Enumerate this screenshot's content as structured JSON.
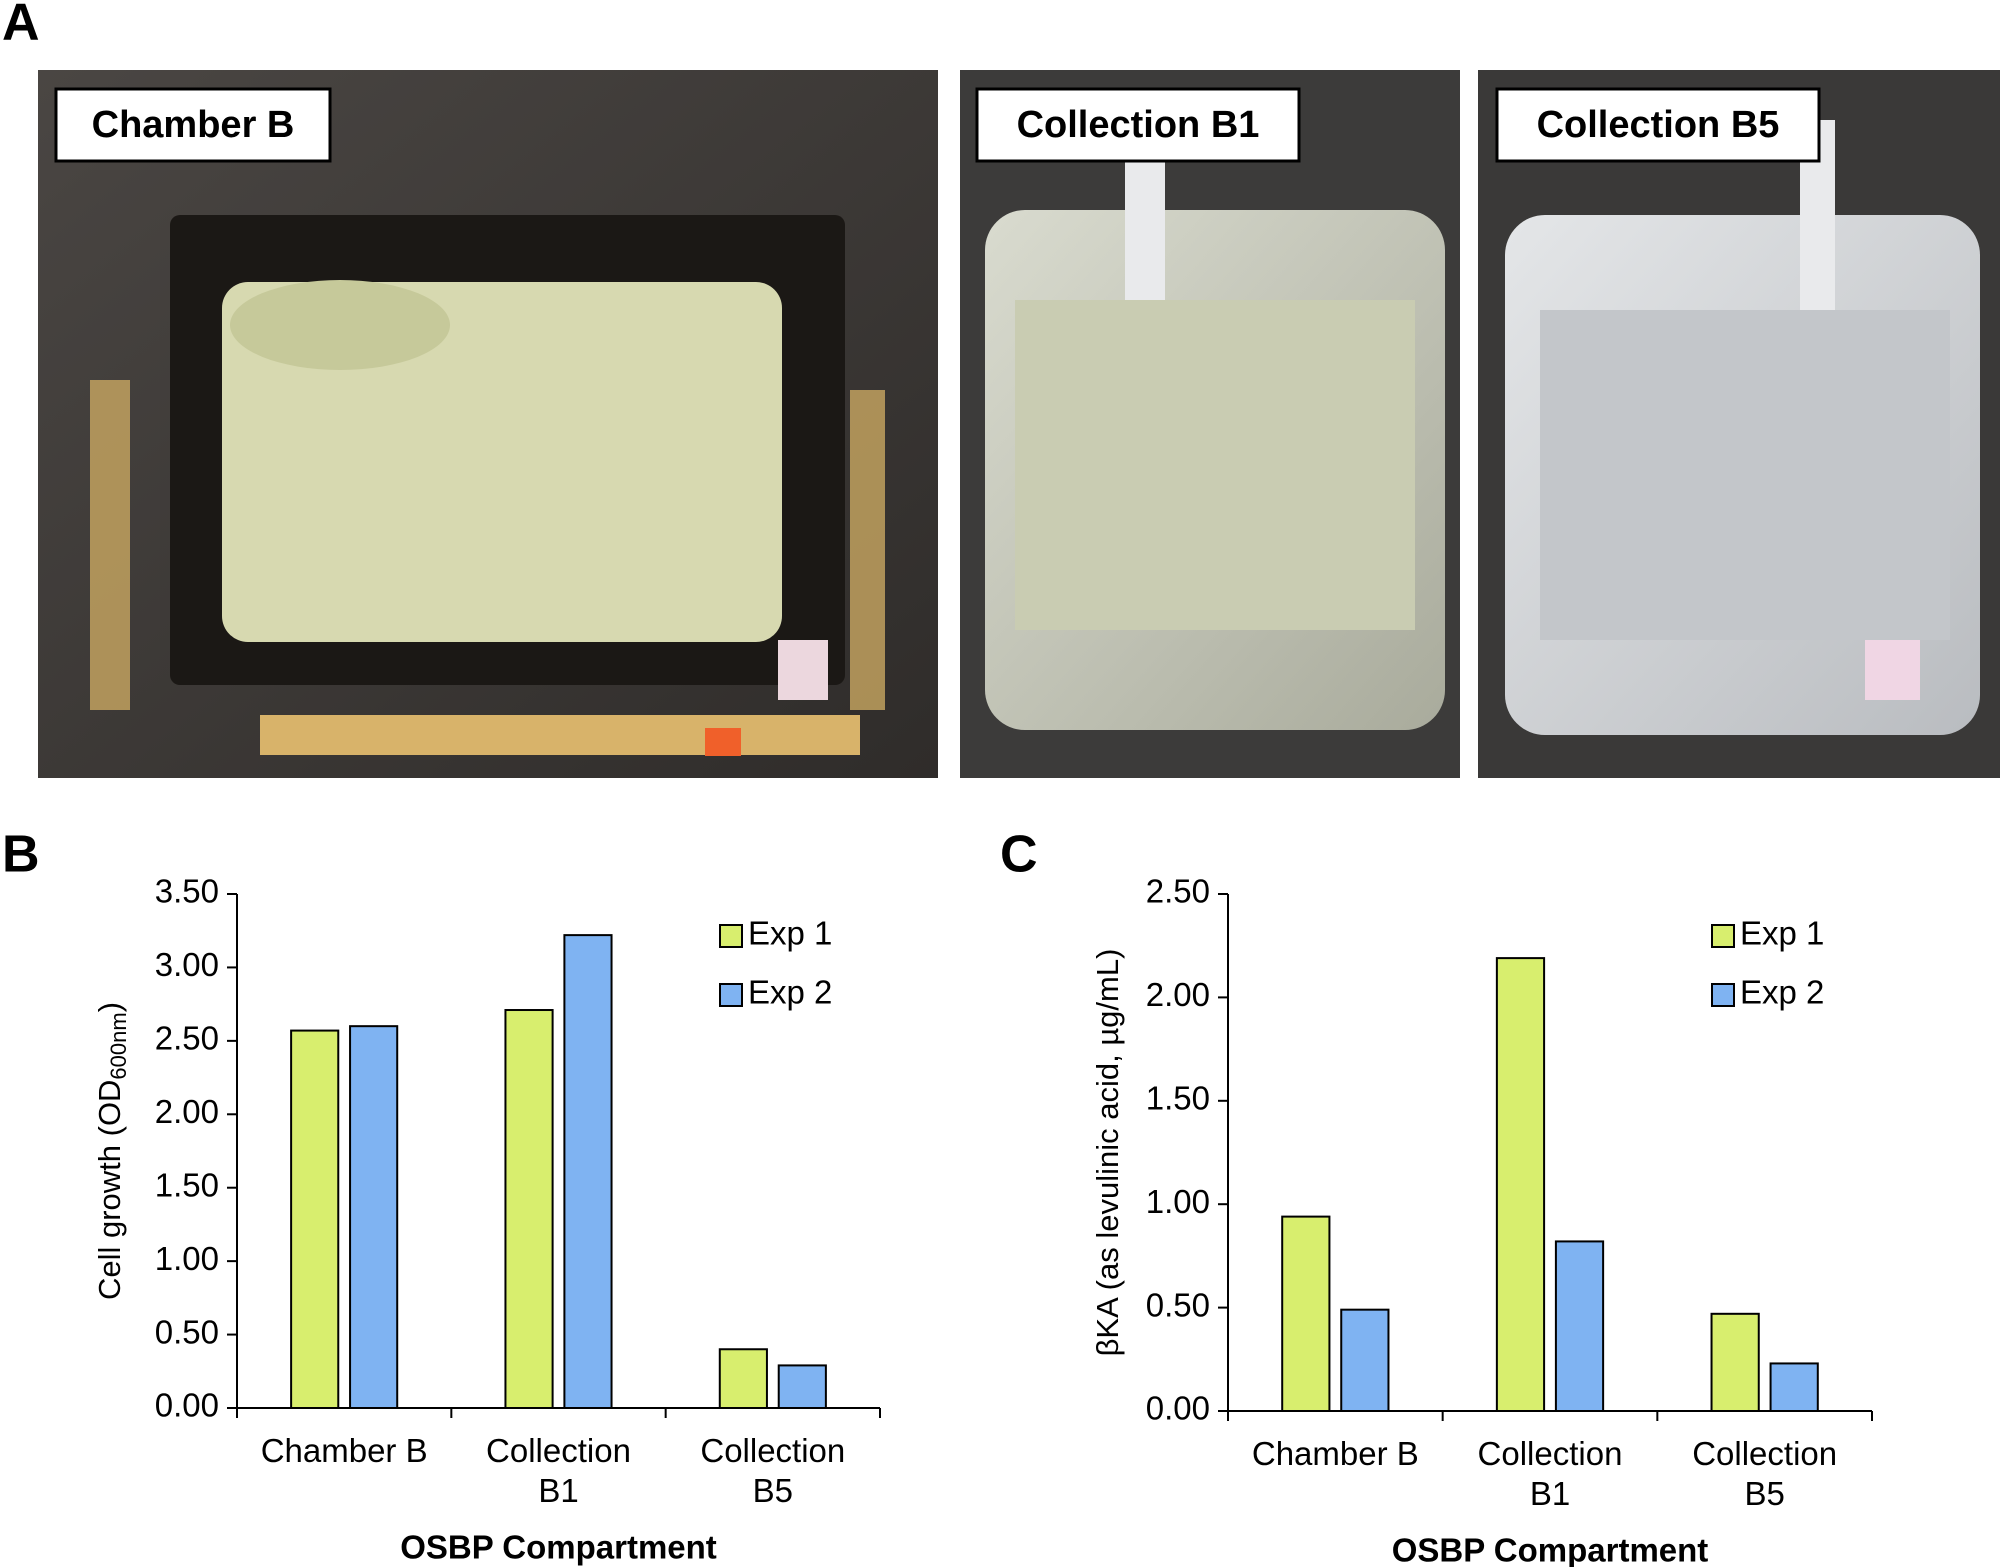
{
  "panel_labels": [
    "A",
    "B",
    "C"
  ],
  "photos": [
    {
      "label": "Chamber B"
    },
    {
      "label": "Collection B1"
    },
    {
      "label": "Collection B5"
    }
  ],
  "chart_data": [
    {
      "type": "bar",
      "x_label": "OSBP Compartment",
      "y_label": [
        "Cell growth (OD",
        "600nm",
        ")"
      ],
      "categories": [
        "Chamber B",
        "Collection\nB1",
        "Collection\nB5"
      ],
      "series": [
        {
          "name": "Exp 1",
          "color": "#d8ee6e",
          "values": [
            2.57,
            2.71,
            0.4
          ]
        },
        {
          "name": "Exp 2",
          "color": "#7fb3f2",
          "values": [
            2.6,
            3.22,
            0.29
          ]
        }
      ],
      "ylim": [
        0,
        3.5
      ],
      "yticks": [
        {
          "value": 0,
          "label": "0.00"
        },
        {
          "value": 0.5,
          "label": "0.50"
        },
        {
          "value": 1,
          "label": "1.00"
        },
        {
          "value": 1.5,
          "label": "1.50"
        },
        {
          "value": 2,
          "label": "2.00"
        },
        {
          "value": 2.5,
          "label": "2.50"
        },
        {
          "value": 3,
          "label": "3.00"
        },
        {
          "value": 3.5,
          "label": "3.50"
        }
      ],
      "legend": "upper right",
      "grid": false
    },
    {
      "type": "bar",
      "x_label": "OSBP Compartment",
      "y_label": [
        "βKA (as levulinic acid, µg/mL)"
      ],
      "categories": [
        "Chamber B",
        "Collection\nB1",
        "Collection\nB5"
      ],
      "series": [
        {
          "name": "Exp 1",
          "color": "#d8ee6e",
          "values": [
            0.94,
            2.19,
            0.47
          ]
        },
        {
          "name": "Exp 2",
          "color": "#7fb3f2",
          "values": [
            0.49,
            0.82,
            0.23
          ]
        }
      ],
      "ylim": [
        0,
        2.5
      ],
      "yticks": [
        {
          "value": 0,
          "label": "0.00"
        },
        {
          "value": 0.5,
          "label": "0.50"
        },
        {
          "value": 1,
          "label": "1.00"
        },
        {
          "value": 1.5,
          "label": "1.50"
        },
        {
          "value": 2,
          "label": "2.00"
        },
        {
          "value": 2.5,
          "label": "2.50"
        }
      ],
      "legend": "upper right",
      "grid": false
    }
  ]
}
